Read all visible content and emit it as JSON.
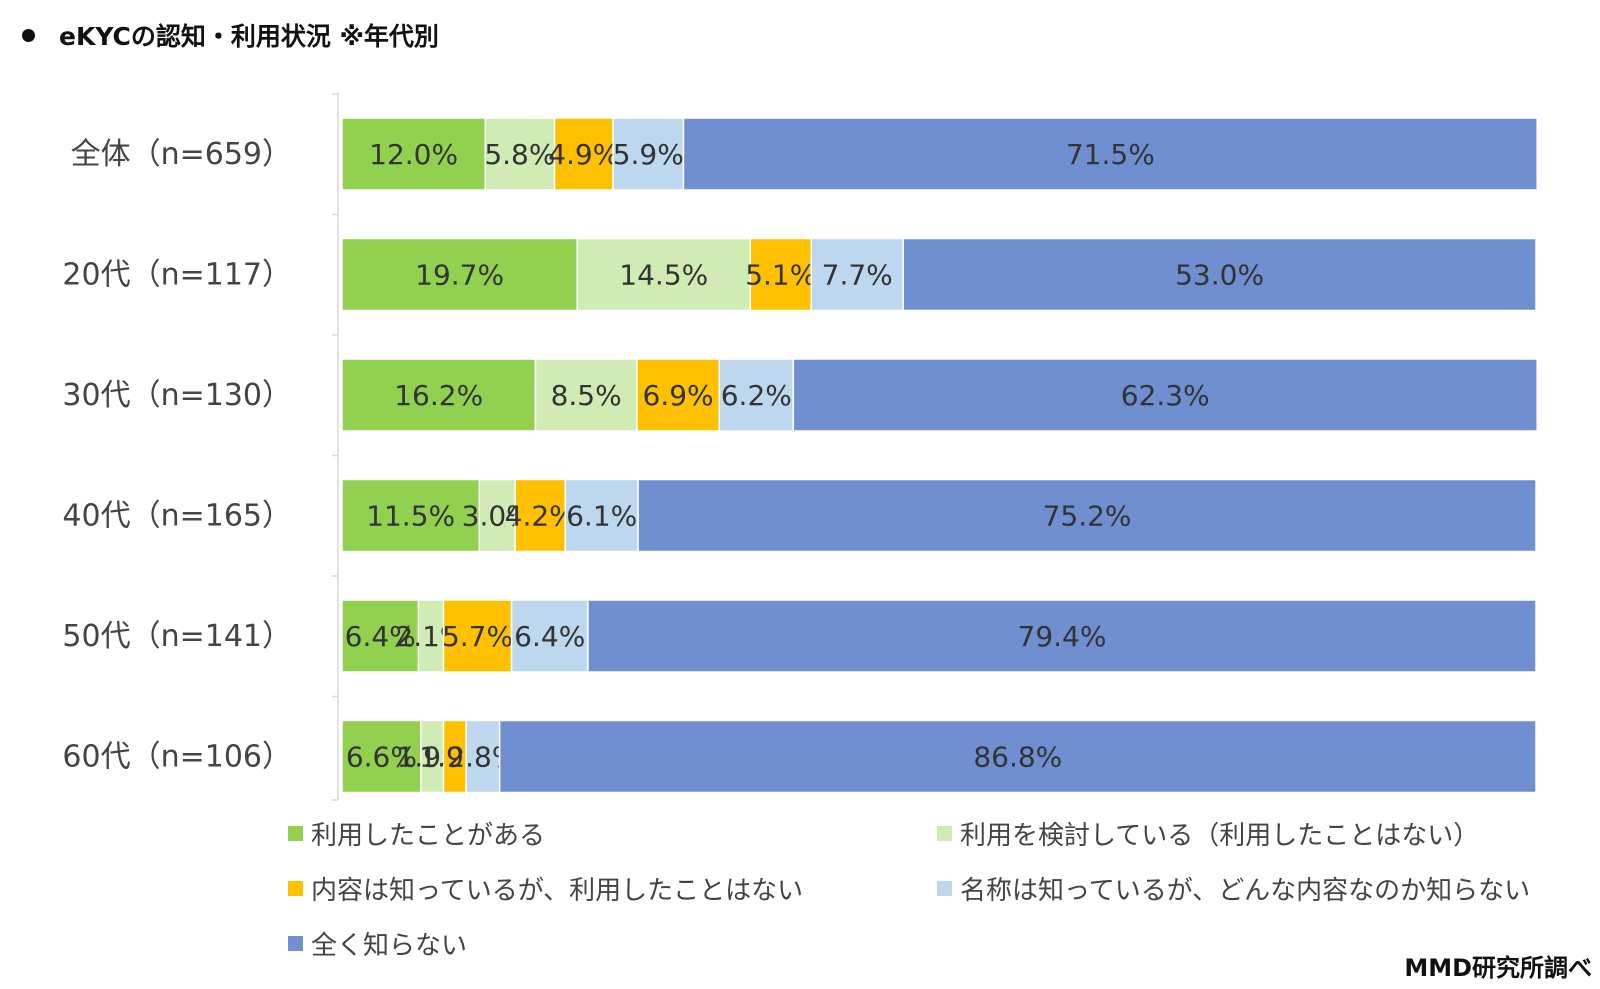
{
  "title": "eKYCの認知・利用状況 ※年代別",
  "source": "MMD研究所調べ",
  "colors": {
    "used": "#92D050",
    "considering": "#D1EBB5",
    "know_content": "#FFC000",
    "know_name": "#BDD7EE",
    "unknown": "#6F8FD0"
  },
  "chart_data": {
    "type": "bar",
    "orientation": "horizontal",
    "stacked": "percent",
    "title": "eKYCの認知・利用状況 ※年代別",
    "xlim": [
      0,
      100
    ],
    "grid": false,
    "legend_position": "bottom",
    "categories": [
      "全体（n=659）",
      "20代（n=117）",
      "30代（n=130）",
      "40代（n=165）",
      "50代（n=141）",
      "60代（n=106）"
    ],
    "series": [
      {
        "name": "利用したことがある",
        "color_key": "used",
        "values": [
          12.0,
          19.7,
          16.2,
          11.5,
          6.4,
          6.6
        ],
        "labels": [
          "12.0%",
          "19.7%",
          "16.2%",
          "11.5%",
          "6.4%",
          "6.6%"
        ]
      },
      {
        "name": "利用を検討している（利用したことはない）",
        "color_key": "considering",
        "values": [
          5.8,
          14.5,
          8.5,
          3.0,
          2.1,
          1.9
        ],
        "labels": [
          "5.8%",
          "14.5%",
          "8.5%",
          "3.0%",
          "2.1%",
          "1.9%"
        ]
      },
      {
        "name": "内容は知っているが、利用したことはない",
        "color_key": "know_content",
        "values": [
          4.9,
          5.1,
          6.9,
          4.2,
          5.7,
          1.9
        ],
        "labels": [
          "4.9%",
          "5.1%",
          "6.9%",
          "4.2%",
          "5.7%",
          "1.9%"
        ]
      },
      {
        "name": "名称は知っているが、どんな内容なのか知らない",
        "color_key": "know_name",
        "values": [
          5.9,
          7.7,
          6.2,
          6.1,
          6.4,
          2.8
        ],
        "labels": [
          "5.9%",
          "7.7%",
          "6.2%",
          "6.1%",
          "6.4%",
          "2.8%"
        ]
      },
      {
        "name": "全く知らない",
        "color_key": "unknown",
        "values": [
          71.5,
          53.0,
          62.3,
          75.2,
          79.4,
          86.8
        ],
        "labels": [
          "71.5%",
          "53.0%",
          "62.3%",
          "75.2%",
          "79.4%",
          "86.8%"
        ]
      }
    ]
  }
}
